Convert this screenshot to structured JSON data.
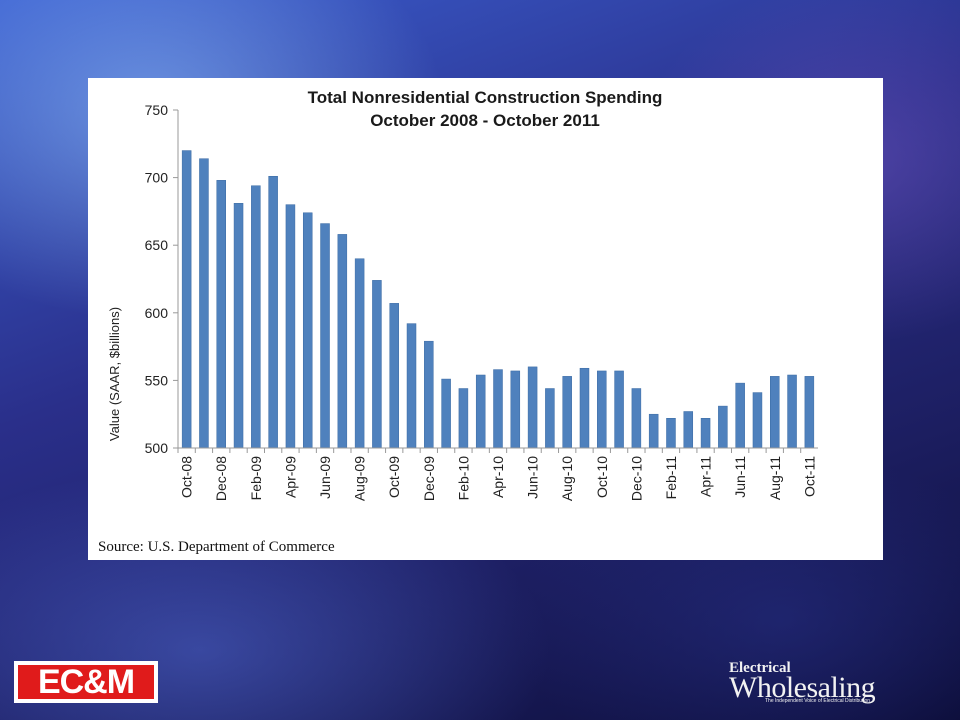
{
  "chart_data": {
    "type": "bar",
    "title": "Total Nonresidential Construction Spending",
    "subtitle": "October 2008 - October 2011",
    "ylabel": "Value (SAAR, $billions)",
    "xlabel": "",
    "ylim": [
      500,
      750
    ],
    "yticks": [
      "500",
      "550",
      "600",
      "650",
      "700",
      "750"
    ],
    "grid": false,
    "color": "#4f81bd",
    "categories": [
      "Oct-08",
      "Nov-08",
      "Dec-08",
      "Jan-09",
      "Feb-09",
      "Mar-09",
      "Apr-09",
      "May-09",
      "Jun-09",
      "Jul-09",
      "Aug-09",
      "Sep-09",
      "Oct-09",
      "Nov-09",
      "Dec-09",
      "Jan-10",
      "Feb-10",
      "Mar-10",
      "Apr-10",
      "May-10",
      "Jun-10",
      "Jul-10",
      "Aug-10",
      "Sep-10",
      "Oct-10",
      "Nov-10",
      "Dec-10",
      "Jan-11",
      "Feb-11",
      "Mar-11",
      "Apr-11",
      "May-11",
      "Jun-11",
      "Jul-11",
      "Aug-11",
      "Sep-11",
      "Oct-11"
    ],
    "tick_labels": [
      "Oct-08",
      "",
      "Dec-08",
      "",
      "Feb-09",
      "",
      "Apr-09",
      "",
      "Jun-09",
      "",
      "Aug-09",
      "",
      "Oct-09",
      "",
      "Dec-09",
      "",
      "Feb-10",
      "",
      "Apr-10",
      "",
      "Jun-10",
      "",
      "Aug-10",
      "",
      "Oct-10",
      "",
      "Dec-10",
      "",
      "Feb-11",
      "",
      "Apr-11",
      "",
      "Jun-11",
      "",
      "Aug-11",
      "",
      "Oct-11"
    ],
    "values": [
      720,
      714,
      698,
      681,
      694,
      701,
      680,
      674,
      666,
      658,
      640,
      624,
      607,
      592,
      579,
      551,
      544,
      554,
      558,
      557,
      560,
      544,
      553,
      559,
      557,
      557,
      544,
      525,
      522,
      527,
      522,
      531,
      548,
      541,
      553,
      554,
      553
    ]
  },
  "source": "Source:  U.S. Department of Commerce",
  "logos": {
    "left": "EC&M",
    "right_top": "Electrical",
    "right_main": "Wholesaling",
    "right_tag": "The Independent Voice of Electrical Distribution"
  }
}
